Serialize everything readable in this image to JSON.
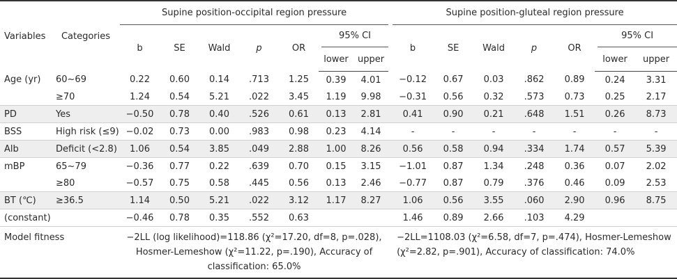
{
  "groups": {
    "occipital": "Supine position-occipital region pressure",
    "gluteal": "Supine position-gluteal region pressure"
  },
  "headers": {
    "variables": "Variables",
    "categories": "Categories",
    "b": "b",
    "se": "SE",
    "wald": "Wald",
    "p": "p",
    "or": "OR",
    "ci": "95% CI",
    "lower": "lower",
    "upper": "upper"
  },
  "rows": [
    {
      "var": "Age (yr)",
      "cat": "60~69",
      "occ": [
        "0.22",
        "0.60",
        "0.14",
        ".713",
        "1.25",
        "0.39",
        "4.01"
      ],
      "glu": [
        "−0.12",
        "0.67",
        "0.03",
        ".862",
        "0.89",
        "0.24",
        "3.31"
      ]
    },
    {
      "var": "",
      "cat": "≥70",
      "occ": [
        "1.24",
        "0.54",
        "5.21",
        ".022",
        "3.45",
        "1.19",
        "9.98"
      ],
      "glu": [
        "−0.31",
        "0.56",
        "0.32",
        ".573",
        "0.73",
        "0.25",
        "2.17"
      ]
    },
    {
      "var": "PD",
      "cat": "Yes",
      "occ": [
        "−0.50",
        "0.78",
        "0.40",
        ".526",
        "0.61",
        "0.13",
        "2.81"
      ],
      "glu": [
        "0.41",
        "0.90",
        "0.21",
        ".648",
        "1.51",
        "0.26",
        "8.73"
      ]
    },
    {
      "var": "BSS",
      "cat": "High risk (≤9)",
      "occ": [
        "−0.02",
        "0.73",
        "0.00",
        ".983",
        "0.98",
        "0.23",
        "4.14"
      ],
      "glu": [
        "-",
        "-",
        "-",
        "-",
        "-",
        "-",
        "-"
      ]
    },
    {
      "var": "Alb",
      "cat": "Deficit (<2.8)",
      "occ": [
        "1.06",
        "0.54",
        "3.85",
        ".049",
        "2.88",
        "1.00",
        "8.26"
      ],
      "glu": [
        "0.56",
        "0.58",
        "0.94",
        ".334",
        "1.74",
        "0.57",
        "5.39"
      ]
    },
    {
      "var": "mBP",
      "cat": "65~79",
      "occ": [
        "−0.36",
        "0.77",
        "0.22",
        ".639",
        "0.70",
        "0.15",
        "3.15"
      ],
      "glu": [
        "−1.01",
        "0.87",
        "1.34",
        ".248",
        "0.36",
        "0.07",
        "2.02"
      ]
    },
    {
      "var": "",
      "cat": "≥80",
      "occ": [
        "−0.57",
        "0.75",
        "0.58",
        ".445",
        "0.56",
        "0.13",
        "2.46"
      ],
      "glu": [
        "−0.77",
        "0.87",
        "0.79",
        ".376",
        "0.46",
        "0.09",
        "2.53"
      ]
    },
    {
      "var": "BT (℃)",
      "cat": "≥36.5",
      "occ": [
        "1.14",
        "0.50",
        "5.21",
        ".022",
        "3.12",
        "1.17",
        "8.27"
      ],
      "glu": [
        "1.06",
        "0.56",
        "3.55",
        ".060",
        "2.90",
        "0.96",
        "8.75"
      ]
    },
    {
      "var": "(constant)",
      "cat": "",
      "occ": [
        "−0.46",
        "0.78",
        "0.35",
        ".552",
        "0.63",
        "",
        ""
      ],
      "glu": [
        "1.46",
        "0.89",
        "2.66",
        ".103",
        "4.29",
        "",
        ""
      ]
    }
  ],
  "model_fitness": {
    "label": "Model fitness",
    "occipital": "−2LL (log likelihood)=118.86 (χ²=17.20, df=8, p=.028), Hosmer-Lemeshow (χ²=11.22, p=.190), Accuracy of classification: 65.0%",
    "gluteal": "−2LL=1108.03 (χ²=6.58, df=7, p=.474), Hosmer-Lemeshow (χ²=2.82, p=.901), Accuracy of classification: 74.0%"
  }
}
